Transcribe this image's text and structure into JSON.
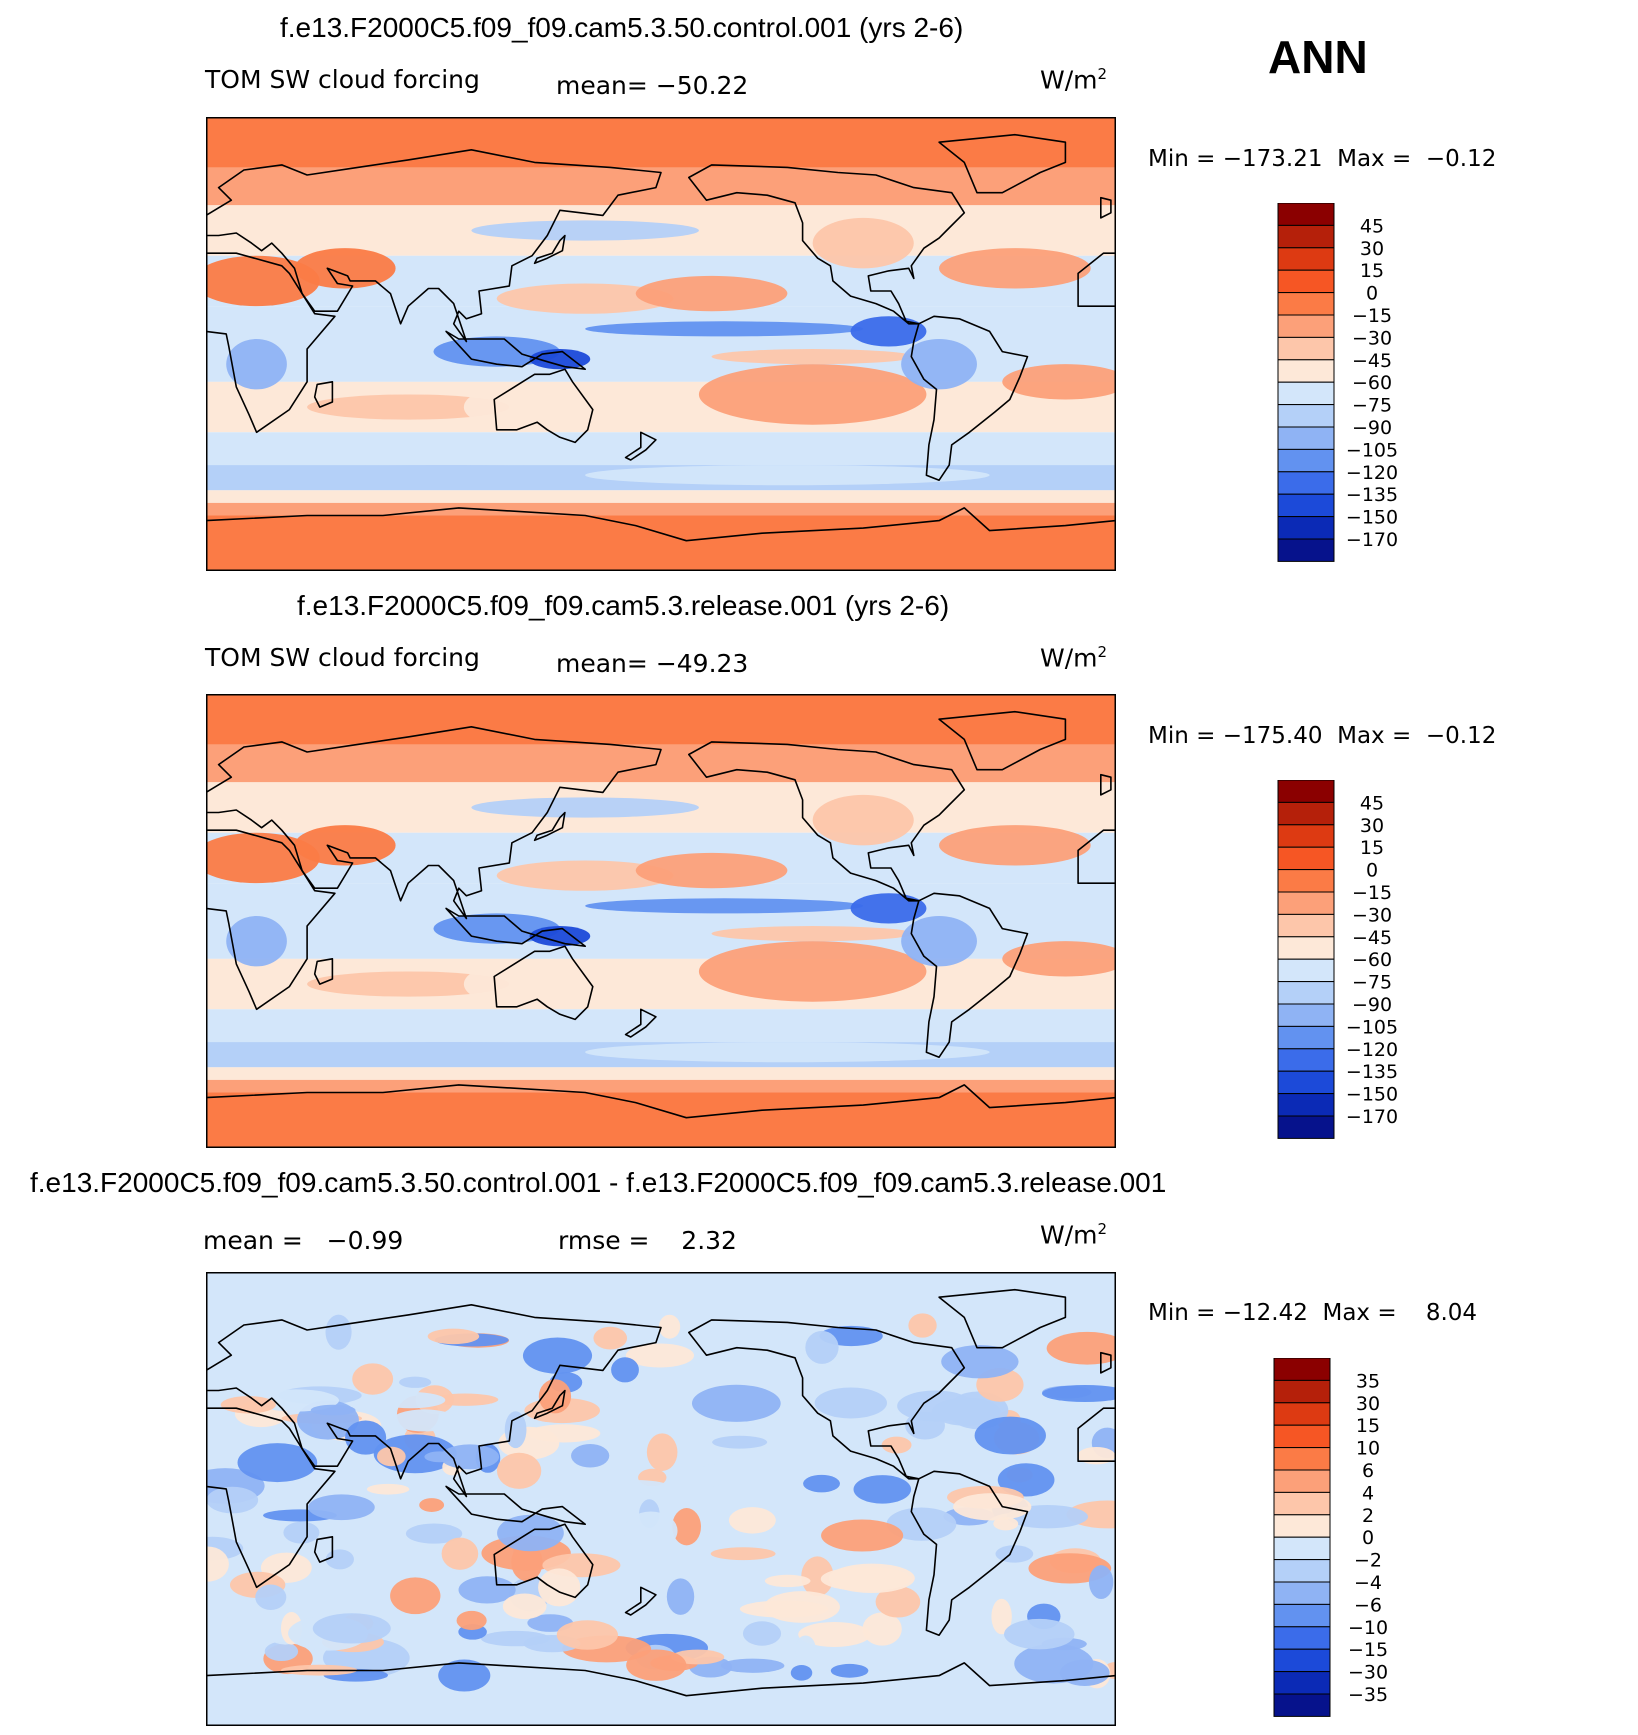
{
  "season": "ANN",
  "chart_data": [
    {
      "type": "heatmap",
      "title": "f.e13.F2000C5.f09_f09.cam5.3.50.control.001 (yrs 2-6)",
      "variable": "TOM SW cloud forcing",
      "mean_label": "mean=",
      "mean": "−50.22",
      "units": "W/m",
      "units_exp": "2",
      "min_label": "Min =",
      "min": "−173.21",
      "max_label": "Max =",
      "max": "−0.12",
      "colorbar": {
        "labels": [
          "45",
          "30",
          "15",
          "0",
          "−15",
          "−30",
          "−45",
          "−60",
          "−75",
          "−90",
          "−105",
          "−120",
          "−135",
          "−150",
          "−170"
        ],
        "colors": [
          "#8b0000",
          "#b5200a",
          "#dd3a12",
          "#f65624",
          "#fb7b46",
          "#fca079",
          "#fdc6aa",
          "#fde8d8",
          "#d3e6fa",
          "#b4d0f8",
          "#8fb3f4",
          "#6292f0",
          "#3b6cea",
          "#1c4ad9",
          "#0b2ab6",
          "#06128c"
        ]
      }
    },
    {
      "type": "heatmap",
      "title": "f.e13.F2000C5.f09_f09.cam5.3.release.001 (yrs 2-6)",
      "variable": "TOM SW cloud forcing",
      "mean_label": "mean=",
      "mean": "−49.23",
      "units": "W/m",
      "units_exp": "2",
      "min_label": "Min =",
      "min": "−175.40",
      "max_label": "Max =",
      "max": "−0.12",
      "colorbar": {
        "labels": [
          "45",
          "30",
          "15",
          "0",
          "−15",
          "−30",
          "−45",
          "−60",
          "−75",
          "−90",
          "−105",
          "−120",
          "−135",
          "−150",
          "−170"
        ],
        "colors": [
          "#8b0000",
          "#b5200a",
          "#dd3a12",
          "#f65624",
          "#fb7b46",
          "#fca079",
          "#fdc6aa",
          "#fde8d8",
          "#d3e6fa",
          "#b4d0f8",
          "#8fb3f4",
          "#6292f0",
          "#3b6cea",
          "#1c4ad9",
          "#0b2ab6",
          "#06128c"
        ]
      }
    },
    {
      "type": "heatmap",
      "title": "f.e13.F2000C5.f09_f09.cam5.3.50.control.001 - f.e13.F2000C5.f09_f09.cam5.3.release.001",
      "mean_label": "mean =",
      "mean": "−0.99",
      "rmse_label": "rmse =",
      "rmse": "2.32",
      "units": "W/m",
      "units_exp": "2",
      "min_label": "Min =",
      "min": "−12.42",
      "max_label": "Max =",
      "max": "8.04",
      "colorbar": {
        "labels": [
          "35",
          "30",
          "15",
          "10",
          "6",
          "4",
          "2",
          "0",
          "−2",
          "−4",
          "−6",
          "−10",
          "−15",
          "−30",
          "−35"
        ],
        "colors": [
          "#8b0000",
          "#b5200a",
          "#dd3a12",
          "#f65624",
          "#fb7b46",
          "#fca079",
          "#fdc6aa",
          "#fde8d8",
          "#d3e6fa",
          "#b4d0f8",
          "#8fb3f4",
          "#6292f0",
          "#3b6cea",
          "#1c4ad9",
          "#0b2ab6",
          "#06128c"
        ]
      }
    }
  ]
}
